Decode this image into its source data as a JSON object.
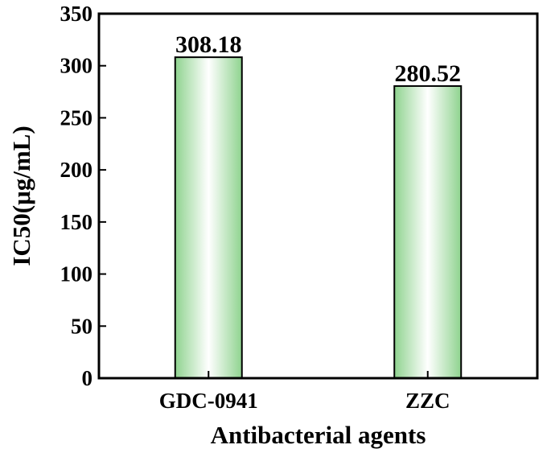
{
  "chart_data": {
    "type": "bar",
    "categories": [
      "GDC-0941",
      "ZZC"
    ],
    "values": [
      308.18,
      280.52
    ],
    "value_labels": [
      "308.18",
      "280.52"
    ],
    "xlabel": "Antibacterial agents",
    "ylabel": "IC50(μg/mL)",
    "ylim": [
      0,
      350
    ],
    "yticks": [
      0,
      50,
      100,
      150,
      200,
      250,
      300,
      350
    ],
    "grid": false,
    "bar_fill_edge_color": "#8fd38f",
    "bar_fill_center_color": "#ffffff",
    "bar_outline_color": "#000000"
  }
}
